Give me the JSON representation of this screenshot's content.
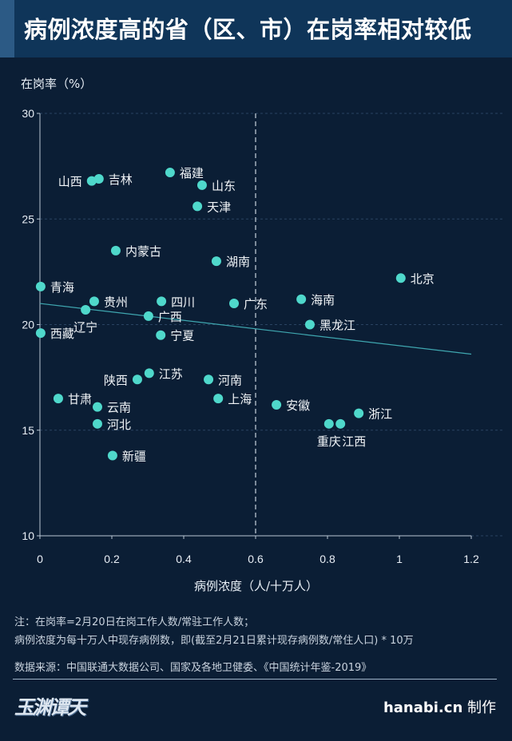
{
  "title": "病例浓度高的省（区、市）在岗率相对较低",
  "notes": [
    "注：在岗率=2月20日在岗工作人数/常驻工作人数；",
    "病例浓度为每十万人中现存病例数，即(截至2月21日累计现存病例数/常住人口) * 10万"
  ],
  "source": "数据来源：中国联通大数据公司、国家及各地卫健委、《中国统计年鉴-2019》",
  "logo_text": "玉渊谭天",
  "credit": {
    "site": "hanabi.cn",
    "suffix": "制作"
  },
  "colors": {
    "background": "#0b1e35",
    "header": "#0f3559",
    "point": "#4fd8cb",
    "trendline": "#3fa7b0"
  },
  "chart_data": {
    "type": "scatter",
    "title": "病例浓度高的省（区、市）在岗率相对较低",
    "xlabel": "病例浓度（人/十万人）",
    "ylabel": "在岗率（%）",
    "xlim": [
      0,
      1.2
    ],
    "ylim": [
      10,
      30
    ],
    "xticks": [
      "0",
      "0.2",
      "0.4",
      "0.6",
      "0.8",
      "1",
      "1.2"
    ],
    "yticks": [
      "10",
      "15",
      "20",
      "25",
      "30"
    ],
    "reference_line_x": 0.6,
    "trendline": {
      "x": [
        0,
        1.2
      ],
      "y": [
        21.0,
        18.6
      ]
    },
    "points": [
      {
        "name": "山西",
        "x": 0.144,
        "y": 26.8
      },
      {
        "name": "吉林",
        "x": 0.164,
        "y": 26.9
      },
      {
        "name": "福建",
        "x": 0.362,
        "y": 27.2
      },
      {
        "name": "山东",
        "x": 0.451,
        "y": 26.6
      },
      {
        "name": "天津",
        "x": 0.438,
        "y": 25.6
      },
      {
        "name": "内蒙古",
        "x": 0.211,
        "y": 23.5
      },
      {
        "name": "湖南",
        "x": 0.491,
        "y": 23.0
      },
      {
        "name": "北京",
        "x": 1.004,
        "y": 22.2
      },
      {
        "name": "青海",
        "x": 0.002,
        "y": 21.8
      },
      {
        "name": "贵州",
        "x": 0.151,
        "y": 21.1
      },
      {
        "name": "四川",
        "x": 0.338,
        "y": 21.1
      },
      {
        "name": "广东",
        "x": 0.54,
        "y": 21.0
      },
      {
        "name": "海南",
        "x": 0.727,
        "y": 21.2
      },
      {
        "name": "辽宁",
        "x": 0.127,
        "y": 20.7
      },
      {
        "name": "广西",
        "x": 0.302,
        "y": 20.4
      },
      {
        "name": "黑龙江",
        "x": 0.751,
        "y": 20.0
      },
      {
        "name": "西藏",
        "x": 0.002,
        "y": 19.6
      },
      {
        "name": "宁夏",
        "x": 0.336,
        "y": 19.5
      },
      {
        "name": "江苏",
        "x": 0.304,
        "y": 17.7
      },
      {
        "name": "陕西",
        "x": 0.271,
        "y": 17.4
      },
      {
        "name": "河南",
        "x": 0.469,
        "y": 17.4
      },
      {
        "name": "甘肃",
        "x": 0.051,
        "y": 16.5
      },
      {
        "name": "上海",
        "x": 0.496,
        "y": 16.5
      },
      {
        "name": "安徽",
        "x": 0.658,
        "y": 16.2
      },
      {
        "name": "云南",
        "x": 0.16,
        "y": 16.1
      },
      {
        "name": "浙江",
        "x": 0.887,
        "y": 15.8
      },
      {
        "name": "重庆",
        "x": 0.804,
        "y": 15.3
      },
      {
        "name": "江西",
        "x": 0.836,
        "y": 15.3
      },
      {
        "name": "河北",
        "x": 0.16,
        "y": 15.3
      },
      {
        "name": "新疆",
        "x": 0.202,
        "y": 13.8
      }
    ]
  }
}
